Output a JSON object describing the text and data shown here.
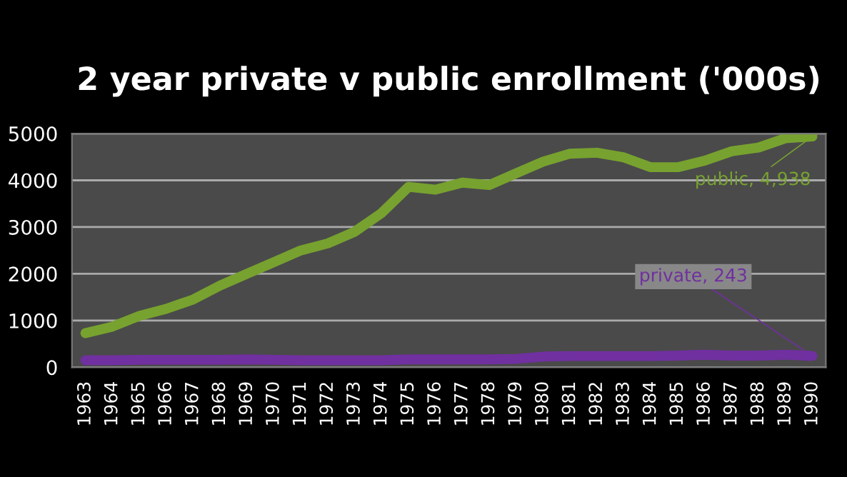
{
  "chart_data": {
    "type": "line",
    "title": "2 year private v public enrollment ('000s)",
    "categories": [
      "1963",
      "1964",
      "1965",
      "1966",
      "1967",
      "1968",
      "1969",
      "1970",
      "1971",
      "1972",
      "1973",
      "1974",
      "1975",
      "1976",
      "1977",
      "1978",
      "1979",
      "1980",
      "1981",
      "1982",
      "1983",
      "1984",
      "1985",
      "1986",
      "1987",
      "1988",
      "1989",
      "1990"
    ],
    "series": [
      {
        "color": "#77a22f",
        "value_labels": [
          null,
          null,
          null,
          null,
          null,
          null,
          null,
          null,
          null,
          null,
          null,
          null,
          null,
          null,
          null,
          null,
          null,
          null,
          null,
          null,
          null,
          null,
          null,
          null,
          null,
          null,
          null,
          "public, 4,938"
        ],
        "values": [
          730,
          870,
          1100,
          1250,
          1450,
          1750,
          2000,
          2250,
          2500,
          2650,
          2900,
          3300,
          3860,
          3800,
          3950,
          3900,
          4150,
          4400,
          4570,
          4590,
          4490,
          4280,
          4280,
          4420,
          4620,
          4700,
          4900,
          4938
        ]
      },
      {
        "color": "#7030a0",
        "value_labels": [
          null,
          null,
          null,
          null,
          null,
          null,
          null,
          null,
          null,
          null,
          null,
          null,
          null,
          null,
          null,
          null,
          null,
          null,
          null,
          null,
          null,
          null,
          null,
          null,
          null,
          null,
          null,
          "private, 243"
        ],
        "values": [
          150,
          150,
          160,
          160,
          160,
          160,
          170,
          160,
          150,
          150,
          150,
          150,
          170,
          170,
          170,
          170,
          180,
          230,
          240,
          240,
          240,
          240,
          250,
          270,
          250,
          250,
          270,
          243
        ]
      }
    ],
    "ylim": [
      0,
      5000
    ],
    "yticks": [
      0,
      1000,
      2000,
      3000,
      4000,
      5000
    ],
    "grid": "y",
    "legend": false
  }
}
